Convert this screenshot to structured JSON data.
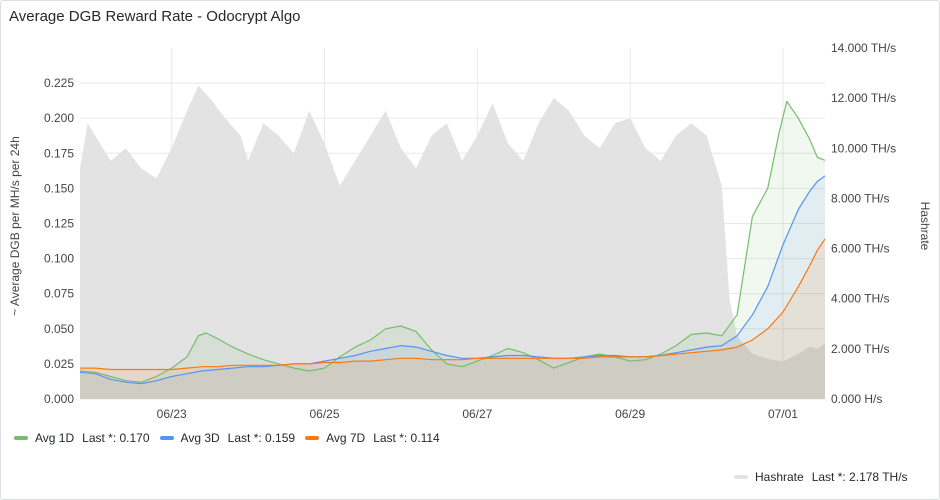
{
  "panel": {
    "title": "Average DGB Reward Rate - Odocrypt Algo"
  },
  "legend_bottom": [
    {
      "name": "Avg 1D",
      "last": "Last *: 0.170",
      "color": "#73bf69"
    },
    {
      "name": "Avg 3D",
      "last": "Last *: 0.159",
      "color": "#5794f2"
    },
    {
      "name": "Avg 7D",
      "last": "Last *: 0.114",
      "color": "#ff780a"
    }
  ],
  "legend_right": {
    "name": "Hashrate",
    "last": "Last *: 2.178 TH/s",
    "color": "#e3e3e3"
  },
  "chart_data": {
    "type": "line",
    "title": "Average DGB Reward Rate - Odocrypt Algo",
    "x_labels": [
      "06/23",
      "06/25",
      "06/27",
      "06/29",
      "07/01"
    ],
    "x_range_days": [
      21.8,
      31.55
    ],
    "x_tick_days": [
      23,
      25,
      27,
      29,
      31
    ],
    "y_left": {
      "label": "~ Average DGB per MH/s per 24h",
      "range": [
        0,
        0.25
      ],
      "ticks": [
        "0.000",
        "0.025",
        "0.050",
        "0.075",
        "0.100",
        "0.125",
        "0.150",
        "0.175",
        "0.200",
        "0.225"
      ]
    },
    "y_right": {
      "label": "Hashrate",
      "range": [
        0,
        14
      ],
      "unit": "TH/s",
      "ticks": [
        "0.000 H/s",
        "2.000 TH/s",
        "4.000 TH/s",
        "6.000 TH/s",
        "8.000 TH/s",
        "10.000 TH/s",
        "12.000 TH/s",
        "14.000 TH/s"
      ]
    },
    "series": [
      {
        "name": "Avg 1D",
        "color": "#73bf69",
        "axis": "left",
        "points": [
          [
            21.8,
            0.02
          ],
          [
            22.0,
            0.019
          ],
          [
            22.2,
            0.016
          ],
          [
            22.4,
            0.013
          ],
          [
            22.6,
            0.012
          ],
          [
            22.8,
            0.016
          ],
          [
            23.0,
            0.022
          ],
          [
            23.2,
            0.03
          ],
          [
            23.35,
            0.045
          ],
          [
            23.45,
            0.047
          ],
          [
            23.6,
            0.043
          ],
          [
            23.8,
            0.037
          ],
          [
            24.0,
            0.032
          ],
          [
            24.2,
            0.028
          ],
          [
            24.4,
            0.025
          ],
          [
            24.6,
            0.022
          ],
          [
            24.8,
            0.02
          ],
          [
            25.0,
            0.022
          ],
          [
            25.2,
            0.03
          ],
          [
            25.4,
            0.037
          ],
          [
            25.6,
            0.042
          ],
          [
            25.8,
            0.05
          ],
          [
            26.0,
            0.052
          ],
          [
            26.2,
            0.048
          ],
          [
            26.4,
            0.035
          ],
          [
            26.6,
            0.025
          ],
          [
            26.8,
            0.023
          ],
          [
            27.0,
            0.027
          ],
          [
            27.2,
            0.031
          ],
          [
            27.4,
            0.036
          ],
          [
            27.6,
            0.033
          ],
          [
            27.8,
            0.028
          ],
          [
            28.0,
            0.022
          ],
          [
            28.2,
            0.026
          ],
          [
            28.4,
            0.03
          ],
          [
            28.6,
            0.032
          ],
          [
            28.8,
            0.03
          ],
          [
            29.0,
            0.027
          ],
          [
            29.2,
            0.028
          ],
          [
            29.4,
            0.032
          ],
          [
            29.6,
            0.038
          ],
          [
            29.8,
            0.046
          ],
          [
            30.0,
            0.047
          ],
          [
            30.2,
            0.045
          ],
          [
            30.4,
            0.06
          ],
          [
            30.6,
            0.13
          ],
          [
            30.8,
            0.15
          ],
          [
            30.95,
            0.19
          ],
          [
            31.05,
            0.212
          ],
          [
            31.2,
            0.2
          ],
          [
            31.35,
            0.185
          ],
          [
            31.45,
            0.172
          ],
          [
            31.55,
            0.17
          ]
        ]
      },
      {
        "name": "Avg 3D",
        "color": "#5794f2",
        "axis": "left",
        "points": [
          [
            21.8,
            0.019
          ],
          [
            22.0,
            0.018
          ],
          [
            22.2,
            0.014
          ],
          [
            22.4,
            0.012
          ],
          [
            22.6,
            0.011
          ],
          [
            22.8,
            0.013
          ],
          [
            23.0,
            0.016
          ],
          [
            23.2,
            0.018
          ],
          [
            23.4,
            0.02
          ],
          [
            23.6,
            0.021
          ],
          [
            23.8,
            0.022
          ],
          [
            24.0,
            0.023
          ],
          [
            24.2,
            0.023
          ],
          [
            24.4,
            0.024
          ],
          [
            24.6,
            0.025
          ],
          [
            24.8,
            0.025
          ],
          [
            25.0,
            0.027
          ],
          [
            25.2,
            0.029
          ],
          [
            25.4,
            0.031
          ],
          [
            25.6,
            0.034
          ],
          [
            25.8,
            0.036
          ],
          [
            26.0,
            0.038
          ],
          [
            26.2,
            0.037
          ],
          [
            26.4,
            0.034
          ],
          [
            26.6,
            0.031
          ],
          [
            26.8,
            0.029
          ],
          [
            27.0,
            0.029
          ],
          [
            27.2,
            0.03
          ],
          [
            27.4,
            0.031
          ],
          [
            27.6,
            0.031
          ],
          [
            27.8,
            0.03
          ],
          [
            28.0,
            0.029
          ],
          [
            28.2,
            0.029
          ],
          [
            28.4,
            0.03
          ],
          [
            28.6,
            0.031
          ],
          [
            28.8,
            0.031
          ],
          [
            29.0,
            0.03
          ],
          [
            29.2,
            0.03
          ],
          [
            29.4,
            0.031
          ],
          [
            29.6,
            0.033
          ],
          [
            29.8,
            0.035
          ],
          [
            30.0,
            0.037
          ],
          [
            30.2,
            0.038
          ],
          [
            30.4,
            0.045
          ],
          [
            30.6,
            0.06
          ],
          [
            30.8,
            0.08
          ],
          [
            31.0,
            0.11
          ],
          [
            31.2,
            0.135
          ],
          [
            31.35,
            0.148
          ],
          [
            31.45,
            0.155
          ],
          [
            31.55,
            0.159
          ]
        ]
      },
      {
        "name": "Avg 7D",
        "color": "#ff780a",
        "axis": "left",
        "points": [
          [
            21.8,
            0.022
          ],
          [
            22.0,
            0.022
          ],
          [
            22.2,
            0.021
          ],
          [
            22.4,
            0.021
          ],
          [
            22.6,
            0.021
          ],
          [
            22.8,
            0.021
          ],
          [
            23.0,
            0.021
          ],
          [
            23.2,
            0.022
          ],
          [
            23.4,
            0.023
          ],
          [
            23.6,
            0.023
          ],
          [
            23.8,
            0.024
          ],
          [
            24.0,
            0.024
          ],
          [
            24.2,
            0.024
          ],
          [
            24.4,
            0.024
          ],
          [
            24.6,
            0.025
          ],
          [
            24.8,
            0.025
          ],
          [
            25.0,
            0.026
          ],
          [
            25.2,
            0.026
          ],
          [
            25.4,
            0.027
          ],
          [
            25.6,
            0.027
          ],
          [
            25.8,
            0.028
          ],
          [
            26.0,
            0.029
          ],
          [
            26.2,
            0.029
          ],
          [
            26.4,
            0.028
          ],
          [
            26.6,
            0.028
          ],
          [
            26.8,
            0.028
          ],
          [
            27.0,
            0.029
          ],
          [
            27.2,
            0.029
          ],
          [
            27.4,
            0.029
          ],
          [
            27.6,
            0.029
          ],
          [
            27.8,
            0.029
          ],
          [
            28.0,
            0.029
          ],
          [
            28.2,
            0.029
          ],
          [
            28.4,
            0.029
          ],
          [
            28.6,
            0.03
          ],
          [
            28.8,
            0.03
          ],
          [
            29.0,
            0.03
          ],
          [
            29.2,
            0.03
          ],
          [
            29.4,
            0.031
          ],
          [
            29.6,
            0.032
          ],
          [
            29.8,
            0.033
          ],
          [
            30.0,
            0.034
          ],
          [
            30.2,
            0.035
          ],
          [
            30.4,
            0.037
          ],
          [
            30.6,
            0.042
          ],
          [
            30.8,
            0.05
          ],
          [
            31.0,
            0.062
          ],
          [
            31.2,
            0.08
          ],
          [
            31.35,
            0.095
          ],
          [
            31.45,
            0.106
          ],
          [
            31.55,
            0.114
          ]
        ]
      },
      {
        "name": "Hashrate",
        "color": "#e3e3e3",
        "axis": "right",
        "type": "area",
        "points": [
          [
            21.8,
            9.2
          ],
          [
            21.9,
            11.0
          ],
          [
            22.0,
            10.5
          ],
          [
            22.2,
            9.5
          ],
          [
            22.4,
            10.0
          ],
          [
            22.6,
            9.2
          ],
          [
            22.8,
            8.8
          ],
          [
            23.0,
            10.0
          ],
          [
            23.2,
            11.5
          ],
          [
            23.35,
            12.5
          ],
          [
            23.5,
            12.0
          ],
          [
            23.7,
            11.2
          ],
          [
            23.9,
            10.5
          ],
          [
            24.0,
            9.5
          ],
          [
            24.2,
            11.0
          ],
          [
            24.4,
            10.5
          ],
          [
            24.6,
            9.8
          ],
          [
            24.8,
            11.5
          ],
          [
            25.0,
            10.2
          ],
          [
            25.2,
            8.5
          ],
          [
            25.4,
            9.5
          ],
          [
            25.6,
            10.5
          ],
          [
            25.8,
            11.5
          ],
          [
            26.0,
            10.0
          ],
          [
            26.2,
            9.2
          ],
          [
            26.4,
            10.5
          ],
          [
            26.6,
            11.0
          ],
          [
            26.8,
            9.5
          ],
          [
            27.0,
            10.5
          ],
          [
            27.2,
            11.8
          ],
          [
            27.4,
            10.2
          ],
          [
            27.6,
            9.5
          ],
          [
            27.8,
            11.0
          ],
          [
            28.0,
            12.0
          ],
          [
            28.2,
            11.5
          ],
          [
            28.4,
            10.5
          ],
          [
            28.6,
            10.0
          ],
          [
            28.8,
            11.0
          ],
          [
            29.0,
            11.2
          ],
          [
            29.2,
            10.0
          ],
          [
            29.4,
            9.5
          ],
          [
            29.6,
            10.5
          ],
          [
            29.8,
            11.0
          ],
          [
            30.0,
            10.5
          ],
          [
            30.1,
            9.5
          ],
          [
            30.2,
            8.5
          ],
          [
            30.3,
            4.0
          ],
          [
            30.4,
            2.5
          ],
          [
            30.6,
            1.8
          ],
          [
            30.8,
            1.6
          ],
          [
            31.0,
            1.5
          ],
          [
            31.2,
            1.8
          ],
          [
            31.35,
            2.1
          ],
          [
            31.45,
            2.0
          ],
          [
            31.55,
            2.2
          ]
        ]
      }
    ]
  }
}
